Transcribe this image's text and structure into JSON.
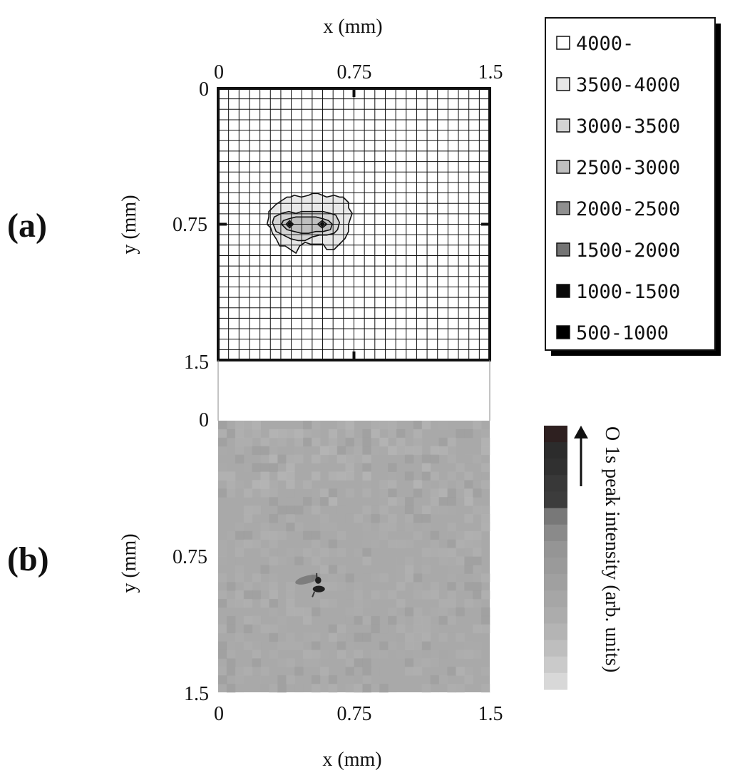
{
  "chart_data": [
    {
      "panel": "(a)",
      "type": "heatmap",
      "xlabel": "x (mm)",
      "ylabel": "y (mm)",
      "xlim": [
        0,
        1.5
      ],
      "ylim": [
        0,
        1.5
      ],
      "y_axis": "inverted",
      "x_ticks": [
        "0",
        "0.75",
        "1.5"
      ],
      "y_ticks": [
        "0",
        "0.75",
        "1.5"
      ],
      "grid": true,
      "grid_divisions": 26,
      "legend": {
        "placement": "right",
        "entries": [
          {
            "label": "4000-",
            "color": "#ffffff"
          },
          {
            "label": "3500-4000",
            "color": "#e8e8e8"
          },
          {
            "label": "3000-3500",
            "color": "#d4d4d4"
          },
          {
            "label": "2500-3000",
            "color": "#bfbfbf"
          },
          {
            "label": "2000-2500",
            "color": "#8f8f8f"
          },
          {
            "label": "1500-2000",
            "color": "#747474"
          },
          {
            "label": "1000-1500",
            "color": "#0a0a0a"
          },
          {
            "label": "500-1000",
            "color": "#000000"
          }
        ]
      },
      "contours": [
        {
          "level": "3500-4000",
          "outline": [
            [
              0.35,
              0.62
            ],
            [
              0.38,
              0.6
            ],
            [
              0.4,
              0.6
            ],
            [
              0.42,
              0.59
            ],
            [
              0.46,
              0.6
            ],
            [
              0.5,
              0.59
            ],
            [
              0.52,
              0.58
            ],
            [
              0.55,
              0.58
            ],
            [
              0.6,
              0.6
            ],
            [
              0.64,
              0.59
            ],
            [
              0.67,
              0.6
            ],
            [
              0.69,
              0.6
            ],
            [
              0.72,
              0.63
            ],
            [
              0.72,
              0.66
            ],
            [
              0.74,
              0.69
            ],
            [
              0.73,
              0.72
            ],
            [
              0.72,
              0.75
            ],
            [
              0.72,
              0.79
            ],
            [
              0.7,
              0.83
            ],
            [
              0.66,
              0.87
            ],
            [
              0.64,
              0.89
            ],
            [
              0.6,
              0.89
            ],
            [
              0.58,
              0.86
            ],
            [
              0.55,
              0.86
            ],
            [
              0.51,
              0.86
            ],
            [
              0.48,
              0.85
            ],
            [
              0.45,
              0.87
            ],
            [
              0.43,
              0.91
            ],
            [
              0.4,
              0.89
            ],
            [
              0.37,
              0.87
            ],
            [
              0.34,
              0.87
            ],
            [
              0.32,
              0.83
            ],
            [
              0.3,
              0.8
            ],
            [
              0.29,
              0.77
            ],
            [
              0.27,
              0.75
            ],
            [
              0.28,
              0.71
            ],
            [
              0.28,
              0.68
            ],
            [
              0.3,
              0.66
            ],
            [
              0.32,
              0.64
            ]
          ]
        },
        {
          "level": "3000-3500",
          "outline": [
            [
              0.3,
              0.74
            ],
            [
              0.31,
              0.71
            ],
            [
              0.35,
              0.69
            ],
            [
              0.39,
              0.68
            ],
            [
              0.43,
              0.69
            ],
            [
              0.46,
              0.68
            ],
            [
              0.5,
              0.68
            ],
            [
              0.54,
              0.68
            ],
            [
              0.58,
              0.68
            ],
            [
              0.62,
              0.69
            ],
            [
              0.65,
              0.7
            ],
            [
              0.67,
              0.74
            ],
            [
              0.66,
              0.78
            ],
            [
              0.64,
              0.8
            ],
            [
              0.6,
              0.81
            ],
            [
              0.56,
              0.81
            ],
            [
              0.52,
              0.82
            ],
            [
              0.48,
              0.84
            ],
            [
              0.44,
              0.84
            ],
            [
              0.4,
              0.83
            ],
            [
              0.36,
              0.81
            ],
            [
              0.32,
              0.79
            ]
          ]
        },
        {
          "level": "2500-3000",
          "outline": [
            [
              0.35,
              0.75
            ],
            [
              0.36,
              0.73
            ],
            [
              0.39,
              0.72
            ],
            [
              0.43,
              0.71
            ],
            [
              0.46,
              0.71
            ],
            [
              0.5,
              0.71
            ],
            [
              0.54,
              0.71
            ],
            [
              0.58,
              0.72
            ],
            [
              0.61,
              0.73
            ],
            [
              0.63,
              0.75
            ],
            [
              0.62,
              0.78
            ],
            [
              0.58,
              0.79
            ],
            [
              0.54,
              0.79
            ],
            [
              0.5,
              0.8
            ],
            [
              0.46,
              0.8
            ],
            [
              0.42,
              0.79
            ],
            [
              0.38,
              0.78
            ]
          ]
        },
        {
          "level": "2000-2500",
          "outline": [
            [
              0.375,
              0.75
            ],
            [
              0.395,
              0.73
            ],
            [
              0.415,
              0.75
            ],
            [
              0.395,
              0.77
            ]
          ]
        },
        {
          "level": "2000-2500",
          "outline": [
            [
              0.55,
              0.75
            ],
            [
              0.575,
              0.73
            ],
            [
              0.6,
              0.75
            ],
            [
              0.575,
              0.77
            ]
          ]
        },
        {
          "level": "1500-2000",
          "outline": [
            [
              0.385,
              0.75
            ],
            [
              0.395,
              0.74
            ],
            [
              0.405,
              0.75
            ],
            [
              0.395,
              0.76
            ]
          ]
        },
        {
          "level": "1500-2000",
          "outline": [
            [
              0.565,
              0.75
            ],
            [
              0.575,
              0.74
            ],
            [
              0.585,
              0.75
            ],
            [
              0.575,
              0.76
            ]
          ]
        },
        {
          "level": "1000-1500",
          "point": [
            0.395,
            0.75
          ]
        },
        {
          "level": "1000-1500",
          "point": [
            0.575,
            0.75
          ]
        }
      ]
    },
    {
      "panel": "(b)",
      "type": "heatmap",
      "xlabel": "x (mm)",
      "ylabel": "y (mm)",
      "xlim": [
        0,
        1.5
      ],
      "ylim": [
        0,
        1.5
      ],
      "y_axis": "inverted",
      "x_ticks": [
        "0",
        "0.75",
        "1.5"
      ],
      "y_ticks": [
        "0",
        "0.75",
        "1.5"
      ],
      "colorbar": {
        "label": "O 1s peak intensity (arb. units)",
        "direction": "increasing-upward",
        "colors": [
          "#2e2020",
          "#2c2c2c",
          "#303030",
          "#383838",
          "#3c3c3c",
          "#787878",
          "#8a8a8a",
          "#959595",
          "#9a9a9a",
          "#a0a0a0",
          "#a6a6a6",
          "#acacac",
          "#b4b4b4",
          "#bebebe",
          "#cacaca",
          "#d8d8d8"
        ]
      },
      "features": [
        {
          "description": "background",
          "level": "low",
          "color": "#a9a9a9"
        },
        {
          "description": "dark spot",
          "center": [
            0.55,
            0.92
          ],
          "size_mm": 0.12,
          "color": "#202020"
        }
      ]
    }
  ]
}
